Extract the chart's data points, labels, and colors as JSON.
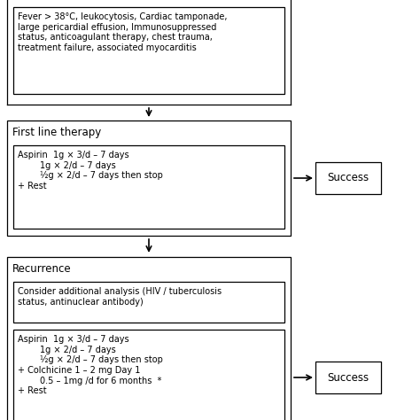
{
  "background_color": "#ffffff",
  "fig_width": 4.74,
  "fig_height": 4.74,
  "box1_inner_text": "Fever > 38°C, leukocytosis, Cardiac tamponade,\nlarge pericardial effusion, Immunosuppressed\nstatus, anticoagulant therapy, chest trauma,\ntreatment failure, associated myocarditis",
  "box2_header": "First line therapy",
  "box2_inner": "Aspirin  1g × 3/d – 7 days\n        1g × 2/d – 7 days\n        ½g × 2/d – 7 days then stop\n+ Rest",
  "success1_text": "Success",
  "box3_header": "Recurrence",
  "box3_inner1": "Consider additional analysis (HIV / tuberculosis\nstatus, antinuclear antibody)",
  "box3_inner2": "Aspirin  1g × 3/d – 7 days\n        1g × 2/d – 7 days\n        ½g × 2/d – 7 days then stop\n+ Colchicine 1 – 2 mg Day 1\n        0.5 – 1mg /d for 6 months  *\n+ Rest",
  "success2_text": "Success",
  "text_color": "#000000",
  "box_edge_color": "#000000",
  "box_face_color": "#ffffff",
  "arrow_color": "#000000",
  "font_size_header": 8.5,
  "font_size_inner": 7.0,
  "font_size_success": 8.5
}
